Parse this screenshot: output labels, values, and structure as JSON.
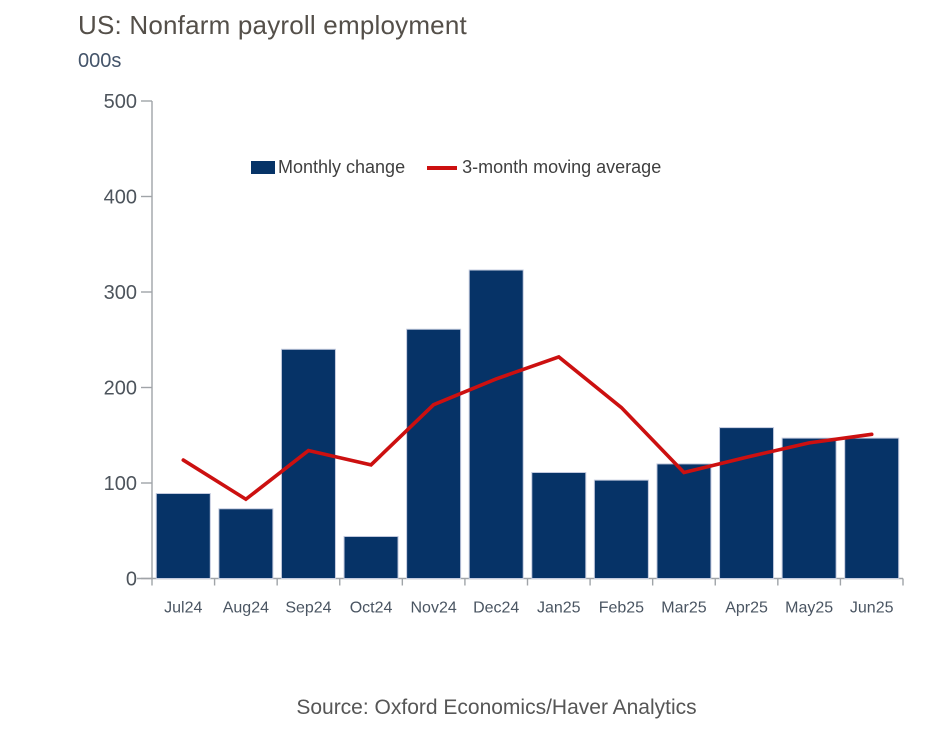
{
  "header": {
    "title": "US: Nonfarm payroll employment",
    "units_label": "000s"
  },
  "legend": {
    "bar_label": "Monthly change",
    "line_label": "3-month moving average"
  },
  "footer": {
    "source": "Source: Oxford Economics/Haver Analytics"
  },
  "colors": {
    "bar_fill": "#063367",
    "bar_border": "#c3cade",
    "line": "#cc1010",
    "axis": "#a0a4a8",
    "title_text": "#544f49",
    "units_text": "#44546a",
    "y_tick_text": "#4d545c",
    "x_tick_text": "#4a5562",
    "legend_text": "#3f3f3f",
    "source_text": "#565656"
  },
  "chart_data": {
    "type": "bar",
    "title": "US: Nonfarm payroll employment",
    "xlabel": "",
    "ylabel": "000s",
    "ylim": [
      0,
      500
    ],
    "yticks": [
      0,
      100,
      200,
      300,
      400,
      500
    ],
    "grid": false,
    "legend_position": "top-center",
    "categories": [
      "Jul24",
      "Aug24",
      "Sep24",
      "Oct24",
      "Nov24",
      "Dec24",
      "Jan25",
      "Feb25",
      "Mar25",
      "Apr25",
      "May25",
      "Jun25"
    ],
    "series": [
      {
        "name": "Monthly change",
        "type": "bar",
        "values": [
          89,
          73,
          240,
          44,
          261,
          323,
          111,
          103,
          120,
          158,
          147,
          147
        ]
      },
      {
        "name": "3-month moving average",
        "type": "line",
        "values": [
          124,
          83,
          134,
          119,
          182,
          209,
          232,
          179,
          111,
          127,
          142,
          151
        ]
      }
    ]
  }
}
